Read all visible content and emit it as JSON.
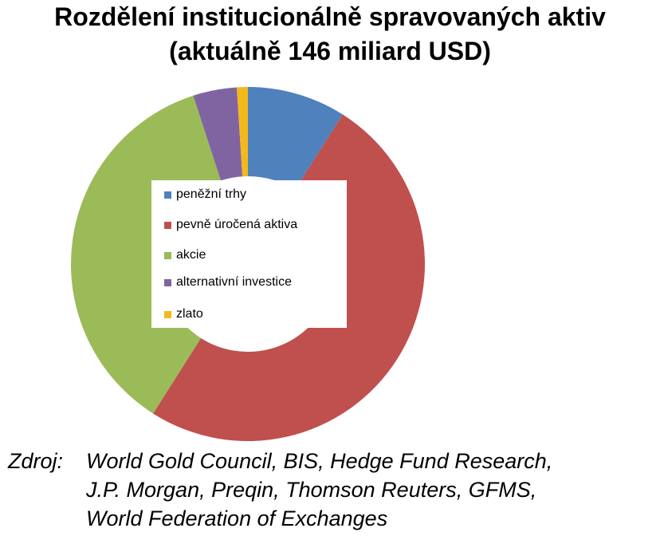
{
  "title": {
    "line1": "Rozdělení institucionálně spravovaných aktiv",
    "line2": "(aktuálně 146 miliard USD)"
  },
  "chart_data": {
    "type": "pie",
    "variant": "donut",
    "title": "Rozdělení institucionálně spravovaných aktiv (aktuálně 146 miliard USD)",
    "categories": [
      "peněžní trhy",
      "pevně úročená aktiva",
      "akcie",
      "alternativní investice",
      "zlato"
    ],
    "values": [
      9,
      50,
      36,
      4,
      1
    ],
    "unit": "%",
    "colors": [
      "#4F81BD",
      "#C0504D",
      "#9BBB59",
      "#8064A2",
      "#F3B91B"
    ],
    "legend": "inside-center"
  },
  "source": {
    "label": "Zdroj:",
    "lines": [
      "World Gold Council, BIS, Hedge Fund Research,",
      "J.P. Morgan, Preqin, Thomson Reuters, GFMS,",
      "World Federation of Exchanges"
    ]
  }
}
